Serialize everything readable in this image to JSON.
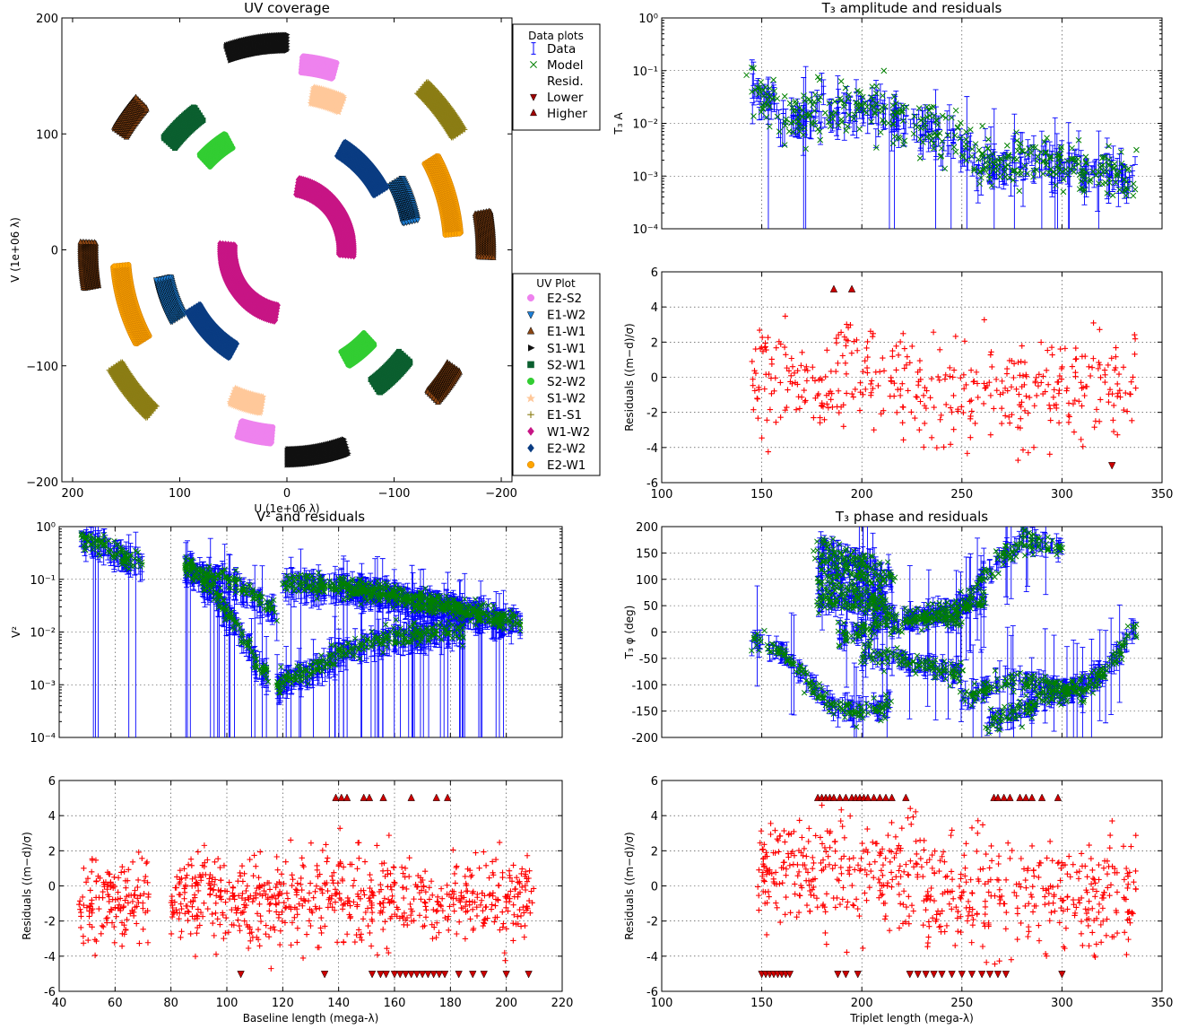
{
  "chart_data": [
    {
      "id": "uv",
      "type": "scatter",
      "title": "UV coverage",
      "xlabel": "U (1e+06 λ)",
      "ylabel": "V (1e+06 λ)",
      "xlim": [
        210,
        -210
      ],
      "ylim": [
        -200,
        200
      ],
      "xticks": [
        200,
        100,
        0,
        -100,
        -200
      ],
      "yticks": [
        200,
        100,
        0,
        -100,
        -200
      ],
      "xticklabels": [
        "200",
        "100",
        "0",
        "−100",
        "−200"
      ],
      "yticklabels": [
        "200",
        "100",
        "0",
        "−100",
        "−200"
      ],
      "grid": false,
      "legend_data_title": "Data plots",
      "legend_data": [
        {
          "label": "Data",
          "marker": "errbar",
          "color": "#0000ff"
        },
        {
          "label": "Model",
          "marker": "x",
          "color": "#008000"
        },
        {
          "label": "Resid.",
          "marker": "+",
          "color": "#ff0000"
        },
        {
          "label": "Lower",
          "marker": "tri-down",
          "color": "#a00000"
        },
        {
          "label": "Higher",
          "marker": "tri-up",
          "color": "#a00000"
        }
      ],
      "legend_uv_title": "UV Plot",
      "series": [
        {
          "name": "E2-S2",
          "color": "#ee82ee",
          "marker": "circle",
          "r": 160,
          "arcs": [
            [
              95,
              106
            ],
            [
              -85,
              -74
            ]
          ]
        },
        {
          "name": "E1-W2",
          "color": "#1e7fd6",
          "marker": "tri-down",
          "r": 117,
          "arcs": [
            [
              150,
              168
            ],
            [
              -30,
              -12
            ]
          ]
        },
        {
          "name": "E1-W1",
          "color": "#8b4513",
          "marker": "tri-up",
          "r": 185,
          "arcs": [
            [
              170,
              182
            ],
            [
              -10,
              2
            ],
            [
              33,
              43
            ],
            [
              -147,
              -137
            ]
          ]
        },
        {
          "name": "S1-W1",
          "color": "#111111",
          "marker": "tri-right",
          "r": 178,
          "arcs": [
            [
              72,
              90
            ],
            [
              -108,
              -90
            ]
          ]
        },
        {
          "name": "S2-W1",
          "color": "#0b5f2f",
          "marker": "square",
          "r": 143,
          "arcs": [
            [
              40,
              55
            ],
            [
              -140,
              -125
            ]
          ]
        },
        {
          "name": "S2-W2",
          "color": "#32cd32",
          "marker": "circle",
          "r": 108,
          "arcs": [
            [
              45,
              60
            ],
            [
              -135,
              -120
            ]
          ]
        },
        {
          "name": "S1-W2",
          "color": "#ffc89a",
          "marker": "star",
          "r": 135,
          "arcs": [
            [
              100,
              112
            ],
            [
              -80,
              -68
            ]
          ]
        },
        {
          "name": "E1-S1",
          "color": "#8b7d14",
          "marker": "plus",
          "r": 188,
          "arcs": [
            [
              132,
              148
            ],
            [
              -48,
              -32
            ]
          ]
        },
        {
          "name": "W1-W2",
          "color": "#c71585",
          "marker": "diamond",
          "r": 55,
          "arcs": [
            [
              100,
              170
            ],
            [
              -80,
              -10
            ],
            [
              -35,
              5
            ],
            [
              145,
              185
            ]
          ]
        },
        {
          "name": "E2-W2",
          "color": "#0a3c82",
          "marker": "diamond",
          "r": 100,
          "arcs": [
            [
              120,
              150
            ],
            [
              -60,
              -30
            ]
          ]
        },
        {
          "name": "E2-W1",
          "color": "#ffa500",
          "marker": "hexagon",
          "r": 155,
          "arcs": [
            [
              150,
              175
            ],
            [
              -30,
              -5
            ]
          ]
        }
      ]
    },
    {
      "id": "t3amp",
      "type": "scatter",
      "title": "T₃ amplitude and residuals",
      "ylabel": "T₃ A",
      "xlim": [
        100,
        350
      ],
      "ylim": [
        0.0001,
        1
      ],
      "yscale": "log",
      "yticklabels": [
        "10⁻⁴",
        "10⁻³",
        "10⁻²",
        "10⁻¹",
        "10⁰"
      ],
      "grid": true,
      "trend": {
        "x": [
          145,
          165,
          180,
          200,
          220,
          240,
          260,
          280,
          300,
          320,
          337
        ],
        "y": [
          0.04,
          0.012,
          0.015,
          0.02,
          0.012,
          0.006,
          0.002,
          0.002,
          0.0015,
          0.0012,
          0.0012
        ]
      },
      "series": [
        {
          "name": "Data",
          "color": "#0000ff"
        },
        {
          "name": "Model",
          "color": "#008000"
        }
      ]
    },
    {
      "id": "t3ampres",
      "type": "scatter",
      "ylabel": "Residuals ((m−d)/σ)",
      "xlim": [
        100,
        350
      ],
      "ylim": [
        -6,
        6
      ],
      "xticks": [
        100,
        150,
        200,
        250,
        300,
        350
      ],
      "yticks": [
        -6,
        -4,
        -2,
        0,
        2,
        4,
        6
      ],
      "grid": true,
      "higher": [
        [
          186,
          5
        ],
        [
          195,
          5
        ]
      ],
      "lower": [
        [
          325,
          -5
        ]
      ],
      "series": [
        {
          "name": "Resid.",
          "color": "#ff0000"
        }
      ]
    },
    {
      "id": "v2",
      "type": "scatter",
      "title": "V² and residuals",
      "ylabel": "V²",
      "xlim": [
        40,
        220
      ],
      "ylim": [
        0.0001,
        1
      ],
      "yscale": "log",
      "yticklabels": [
        "10⁻⁴",
        "10⁻³",
        "10⁻²",
        "10⁻¹",
        "10⁰"
      ],
      "grid": true,
      "branches": [
        {
          "x": [
            47,
            55,
            62,
            70
          ],
          "y": [
            0.6,
            0.45,
            0.3,
            0.2
          ]
        },
        {
          "x": [
            85,
            95,
            105,
            112,
            115
          ],
          "y": [
            0.18,
            0.06,
            0.01,
            0.002,
            0.0015
          ]
        },
        {
          "x": [
            118,
            130,
            145,
            160,
            175,
            185
          ],
          "y": [
            0.001,
            0.002,
            0.005,
            0.008,
            0.01,
            0.01
          ]
        },
        {
          "x": [
            85,
            100,
            110,
            118
          ],
          "y": [
            0.18,
            0.1,
            0.05,
            0.02
          ]
        },
        {
          "x": [
            120,
            140,
            160,
            180,
            205
          ],
          "y": [
            0.09,
            0.07,
            0.05,
            0.03,
            0.015
          ]
        },
        {
          "x": [
            140,
            160,
            180,
            200
          ],
          "y": [
            0.08,
            0.05,
            0.03,
            0.015
          ]
        }
      ],
      "series": [
        {
          "name": "Data",
          "color": "#0000ff"
        },
        {
          "name": "Model",
          "color": "#008000"
        }
      ]
    },
    {
      "id": "v2res",
      "type": "scatter",
      "ylabel": "Residuals ((m−d)/σ)",
      "xlabel": "Baseline length (mega-λ)",
      "xlim": [
        40,
        220
      ],
      "ylim": [
        -6,
        6
      ],
      "xticks": [
        40,
        60,
        80,
        100,
        120,
        140,
        160,
        180,
        200,
        220
      ],
      "yticks": [
        -6,
        -4,
        -2,
        0,
        2,
        4,
        6
      ],
      "grid": true,
      "higher": [
        [
          139,
          5
        ],
        [
          141,
          5
        ],
        [
          143,
          5
        ],
        [
          149,
          5
        ],
        [
          151,
          5
        ],
        [
          156,
          5
        ],
        [
          166,
          5
        ],
        [
          175,
          5
        ],
        [
          179,
          5
        ]
      ],
      "lower": [
        [
          105,
          -5
        ],
        [
          135,
          -5
        ],
        [
          152,
          -5
        ],
        [
          155,
          -5
        ],
        [
          157,
          -5
        ],
        [
          160,
          -5
        ],
        [
          162,
          -5
        ],
        [
          164,
          -5
        ],
        [
          166,
          -5
        ],
        [
          168,
          -5
        ],
        [
          170,
          -5
        ],
        [
          172,
          -5
        ],
        [
          174,
          -5
        ],
        [
          176,
          -5
        ],
        [
          178,
          -5
        ],
        [
          183,
          -5
        ],
        [
          188,
          -5
        ],
        [
          192,
          -5
        ],
        [
          200,
          -5
        ],
        [
          208,
          -5
        ]
      ],
      "series": [
        {
          "name": "Resid.",
          "color": "#ff0000"
        }
      ]
    },
    {
      "id": "t3phi",
      "type": "scatter",
      "title": "T₃ phase and residuals",
      "ylabel": "T₃ φ (deg)",
      "xlim": [
        100,
        350
      ],
      "ylim": [
        -200,
        200
      ],
      "yticks": [
        -200,
        -150,
        -100,
        -50,
        0,
        50,
        100,
        150,
        200
      ],
      "grid": true,
      "series": [
        {
          "name": "Data",
          "color": "#0000ff"
        },
        {
          "name": "Model",
          "color": "#008000"
        }
      ]
    },
    {
      "id": "t3phires",
      "type": "scatter",
      "ylabel": "Residuals ((m−d)/σ)",
      "xlabel": "Triplet length (mega-λ)",
      "xlim": [
        100,
        350
      ],
      "ylim": [
        -6,
        6
      ],
      "xticks": [
        100,
        150,
        200,
        250,
        300,
        350
      ],
      "yticks": [
        -6,
        -4,
        -2,
        0,
        2,
        4,
        6
      ],
      "grid": true,
      "higher": [
        [
          178,
          5
        ],
        [
          180,
          5
        ],
        [
          182,
          5
        ],
        [
          184,
          5
        ],
        [
          186,
          5
        ],
        [
          189,
          5
        ],
        [
          192,
          5
        ],
        [
          195,
          5
        ],
        [
          197,
          5
        ],
        [
          199,
          5
        ],
        [
          201,
          5
        ],
        [
          203,
          5
        ],
        [
          206,
          5
        ],
        [
          209,
          5
        ],
        [
          212,
          5
        ],
        [
          215,
          5
        ],
        [
          222,
          5
        ],
        [
          266,
          5
        ],
        [
          268,
          5
        ],
        [
          271,
          5
        ],
        [
          274,
          5
        ],
        [
          279,
          5
        ],
        [
          282,
          5
        ],
        [
          285,
          5
        ],
        [
          290,
          5
        ],
        [
          298,
          5
        ]
      ],
      "lower": [
        [
          150,
          -5
        ],
        [
          152,
          -5
        ],
        [
          154,
          -5
        ],
        [
          156,
          -5
        ],
        [
          158,
          -5
        ],
        [
          160,
          -5
        ],
        [
          162,
          -5
        ],
        [
          164,
          -5
        ],
        [
          188,
          -5
        ],
        [
          192,
          -5
        ],
        [
          198,
          -5
        ],
        [
          224,
          -5
        ],
        [
          228,
          -5
        ],
        [
          232,
          -5
        ],
        [
          236,
          -5
        ],
        [
          240,
          -5
        ],
        [
          245,
          -5
        ],
        [
          250,
          -5
        ],
        [
          255,
          -5
        ],
        [
          260,
          -5
        ],
        [
          264,
          -5
        ],
        [
          268,
          -5
        ],
        [
          272,
          -5
        ],
        [
          300,
          -5
        ]
      ],
      "series": [
        {
          "name": "Resid.",
          "color": "#ff0000"
        }
      ]
    }
  ]
}
